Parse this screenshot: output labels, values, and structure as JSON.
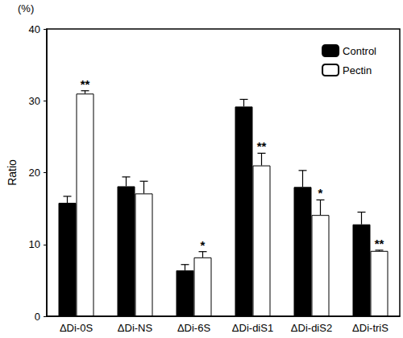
{
  "chart_data": {
    "type": "bar",
    "ylabel": "Ratio",
    "y_unit_label": "(%)",
    "categories": [
      "ΔDi-0S",
      "ΔDi-NS",
      "ΔDi-6S",
      "ΔDi-diS1",
      "ΔDi-diS2",
      "ΔDi-triS"
    ],
    "series": [
      {
        "name": "Control",
        "color": "#000000",
        "values": [
          15.8,
          18.1,
          6.4,
          29.2,
          18.0,
          12.8
        ],
        "errors": [
          0.9,
          1.3,
          0.8,
          1.0,
          2.3,
          1.7
        ]
      },
      {
        "name": "Pectin",
        "color": "#ffffff",
        "values": [
          31.0,
          17.1,
          8.2,
          21.0,
          14.1,
          9.1
        ],
        "errors": [
          0.4,
          1.7,
          0.8,
          1.7,
          2.1,
          0.1
        ],
        "significance": [
          "**",
          null,
          "*",
          "**",
          "*",
          "**"
        ]
      }
    ],
    "ylim": [
      0,
      40
    ],
    "yticks": [
      0,
      10,
      20,
      30,
      40
    ],
    "grid": false,
    "legend": "top-right"
  }
}
